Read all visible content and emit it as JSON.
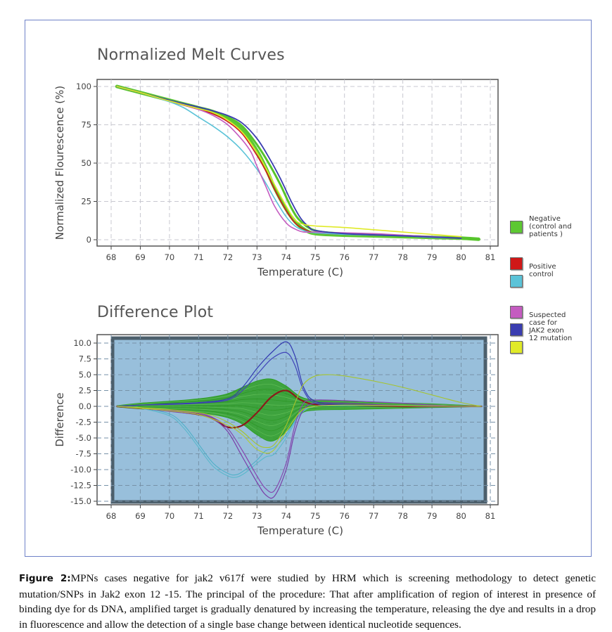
{
  "figure": {
    "caption_label": "Figure 2:",
    "caption_text": "MPNs cases negative for jak2 v617f were studied by HRM which is screening methodology to detect genetic mutation/SNPs in Jak2 exon 12 -15. The principal of the procedure: That after amplification of region of interest in presence of binding dye for ds DNA, amplified target is gradually denatured by increasing the temperature, releasing the dye and results in a drop in fluorescence and allow the detection of a single base change between identical nucleotide sequences."
  },
  "legend": [
    {
      "label_lines": [
        "Negative",
        "(control and",
        "patients )"
      ],
      "color": "#5dc832",
      "group": "negative"
    },
    {
      "label_lines": [
        "Positive",
        "control"
      ],
      "color": "#d01818",
      "group": "positive-a"
    },
    {
      "label_lines": [],
      "color": "#5bc3d8",
      "group": "positive-b"
    },
    {
      "label_lines": [
        "Suspected",
        "case for",
        "JAK2 exon",
        "12 mutation"
      ],
      "color": "#c45cc0",
      "group": "suspected-a"
    },
    {
      "label_lines": [],
      "color": "#3a3db0",
      "group": "suspected-b"
    },
    {
      "label_lines": [],
      "color": "#e0ea28",
      "group": "suspected-c"
    }
  ],
  "chart_data": [
    {
      "type": "line",
      "title": "Normalized Melt Curves",
      "xlabel": "Temperature (C)",
      "ylabel": "Normalized Flourescence (%)",
      "xlim": [
        68,
        81
      ],
      "ylim": [
        0,
        100
      ],
      "xticks": [
        "68",
        "69",
        "70",
        "71",
        "72",
        "73",
        "74",
        "75",
        "76",
        "77",
        "78",
        "79",
        "80",
        "81"
      ],
      "yticks": [
        "100",
        "75",
        "50",
        "25",
        "0"
      ],
      "ytick_values": [
        100,
        75,
        50,
        25,
        0
      ],
      "grid": true,
      "legend_position": "right",
      "series": [
        {
          "name": "Negative (control and patients)",
          "color": "#5dc832",
          "width": 5,
          "x": [
            68.2,
            69,
            70,
            71,
            71.5,
            72,
            72.5,
            73,
            73.3,
            73.6,
            74,
            74.3,
            74.6,
            75,
            76,
            77,
            78,
            79,
            80,
            80.6
          ],
          "y": [
            100,
            96,
            91,
            86,
            83,
            79,
            72,
            58,
            47,
            34,
            20,
            12,
            7,
            4,
            3,
            2.5,
            2,
            1.5,
            1,
            0.3
          ]
        },
        {
          "name": "Negative band upper",
          "color": "#56c42c",
          "width": 3,
          "x": [
            68.2,
            69,
            70,
            71,
            71.5,
            72,
            72.5,
            73,
            73.4,
            73.8,
            74.2,
            74.5,
            75,
            76,
            78,
            80,
            80.6
          ],
          "y": [
            100,
            96,
            91,
            86.5,
            84,
            80,
            74,
            62,
            50,
            36,
            20,
            12,
            6,
            4,
            2.5,
            1,
            0.3
          ]
        },
        {
          "name": "Positive control (red)",
          "color": "#d01818",
          "width": 1.6,
          "x": [
            68.2,
            69,
            70,
            71,
            71.5,
            72,
            72.5,
            73,
            73.3,
            73.6,
            74,
            74.3,
            74.6,
            75,
            76,
            77,
            78,
            79,
            80
          ],
          "y": [
            100,
            96,
            90.5,
            85,
            82,
            77,
            69,
            55,
            45,
            33,
            19,
            11,
            7,
            4.5,
            3.5,
            3,
            2.5,
            1.5,
            1
          ]
        },
        {
          "name": "Positive control (cyan)",
          "color": "#5bc3d8",
          "width": 1.6,
          "x": [
            68.2,
            69,
            70,
            70.5,
            71,
            71.5,
            72,
            72.5,
            73,
            73.3,
            73.6,
            74,
            74.3,
            74.6,
            75,
            76,
            77,
            78,
            79,
            80
          ],
          "y": [
            100,
            96,
            90,
            86,
            80,
            74,
            67,
            58,
            46,
            37,
            27,
            15,
            9,
            6,
            4.5,
            3.5,
            3,
            2.5,
            1.5,
            1
          ]
        },
        {
          "name": "Suspected (magenta)",
          "color": "#c45cc0",
          "width": 1.6,
          "x": [
            68.2,
            69,
            70,
            71,
            71.5,
            72,
            72.5,
            72.8,
            73,
            73.3,
            73.6,
            74,
            74.3,
            74.6,
            75,
            76,
            77,
            78,
            79,
            80
          ],
          "y": [
            100,
            96,
            90.5,
            85,
            81,
            75,
            65,
            57,
            48,
            35,
            22,
            11,
            7,
            5,
            5,
            4.5,
            4,
            3,
            2,
            1
          ]
        },
        {
          "name": "Suspected (blue)",
          "color": "#3a3db0",
          "width": 1.8,
          "x": [
            68.2,
            69,
            70,
            71,
            71.5,
            72,
            72.5,
            73,
            73.4,
            73.8,
            74.2,
            74.5,
            74.8,
            75,
            76,
            78,
            80
          ],
          "y": [
            100,
            96,
            91,
            86.5,
            84,
            81,
            76,
            66,
            54,
            40,
            24,
            14,
            8,
            6,
            4,
            2.5,
            1
          ]
        },
        {
          "name": "Suspected (yellow)",
          "color": "#e0ea28",
          "width": 1.6,
          "x": [
            68.2,
            69,
            70,
            71,
            71.5,
            72,
            72.5,
            73,
            73.3,
            73.6,
            74,
            74.3,
            74.6,
            75,
            76,
            77,
            78,
            79,
            80
          ],
          "y": [
            100,
            96,
            90.5,
            85.5,
            83,
            78,
            70,
            57,
            47,
            36,
            22,
            13,
            10,
            9,
            8,
            6.5,
            5,
            3.5,
            2
          ]
        }
      ]
    },
    {
      "type": "line",
      "title": "Difference Plot",
      "xlabel": "Temperature (C)",
      "ylabel": "Difference",
      "xlim": [
        68,
        81
      ],
      "ylim": [
        -15,
        10
      ],
      "xticks": [
        "68",
        "69",
        "70",
        "71",
        "72",
        "73",
        "74",
        "75",
        "76",
        "77",
        "78",
        "79",
        "80",
        "81"
      ],
      "yticks": [
        "10.0",
        "7.5",
        "5.0",
        "2.5",
        "0.0",
        "-2.5",
        "-5.0",
        "-7.5",
        "-10.0",
        "-12.5",
        "-15.0"
      ],
      "ytick_values": [
        10,
        7.5,
        5,
        2.5,
        0,
        -2.5,
        -5,
        -7.5,
        -10,
        -12.5,
        -15
      ],
      "grid": true,
      "series": [
        {
          "name": "Negative band",
          "color": "#2e9e22",
          "width": 1.2,
          "band": true,
          "x": [
            68.2,
            69,
            70,
            71,
            71.5,
            72,
            72.5,
            73,
            73.5,
            74,
            74.5,
            75,
            76,
            77,
            78,
            79,
            80,
            80.7
          ],
          "y_upper": [
            0.1,
            0.5,
            0.8,
            1.2,
            1.5,
            2.0,
            3.0,
            4.0,
            4.3,
            3.2,
            1.5,
            1.0,
            0.8,
            0.6,
            0.5,
            0.4,
            0.2,
            0
          ],
          "y_lower": [
            -0.1,
            -0.4,
            -0.7,
            -1.0,
            -1.3,
            -1.8,
            -2.8,
            -4.5,
            -5.5,
            -4.0,
            -1.2,
            -0.6,
            -0.5,
            -0.4,
            -0.3,
            -0.2,
            -0.1,
            0
          ]
        },
        {
          "name": "Positive control (dark red)",
          "color": "#8b1a1a",
          "width": 2.2,
          "x": [
            68.2,
            69,
            70,
            71,
            71.5,
            72,
            72.5,
            73,
            73.5,
            74,
            74.5,
            75,
            76,
            77,
            78,
            79,
            80,
            80.7
          ],
          "y": [
            0,
            -0.3,
            -0.7,
            -1.3,
            -2.0,
            -3.3,
            -3.0,
            -1.0,
            1.5,
            2.5,
            1.0,
            0.3,
            0.2,
            0.1,
            0,
            0,
            0,
            0
          ]
        },
        {
          "name": "Positive control (cyan) 1",
          "color": "#5ab8cc",
          "width": 1.1,
          "x": [
            68.2,
            69,
            70,
            70.5,
            71,
            71.5,
            72,
            72.3,
            72.6,
            73,
            73.3,
            73.6,
            74,
            74.5,
            75,
            76,
            78,
            80,
            80.7
          ],
          "y": [
            0,
            -0.3,
            -1.5,
            -3.5,
            -6.5,
            -9.5,
            -11.0,
            -11.2,
            -10.5,
            -9.0,
            -8.0,
            -7.5,
            -5.0,
            -1.2,
            0,
            0.2,
            0.1,
            0,
            0
          ]
        },
        {
          "name": "Positive control (cyan) 2",
          "color": "#4fb0c8",
          "width": 1.1,
          "x": [
            68.2,
            69,
            70,
            70.5,
            71,
            71.5,
            72,
            72.3,
            72.6,
            73,
            73.3,
            73.6,
            74,
            74.5,
            75,
            76,
            78,
            80,
            80.7
          ],
          "y": [
            0,
            -0.2,
            -1.2,
            -3.0,
            -6.0,
            -9.0,
            -10.6,
            -10.8,
            -10.0,
            -8.5,
            -7.0,
            -6.5,
            -4.5,
            -1.0,
            0,
            0.1,
            0.1,
            0,
            0
          ]
        },
        {
          "name": "Suspected (purple) 1",
          "color": "#7a3ea8",
          "width": 1.2,
          "x": [
            68.2,
            69,
            70,
            71,
            71.5,
            72,
            72.5,
            73,
            73.3,
            73.6,
            74,
            74.3,
            74.6,
            75,
            76,
            77,
            78,
            79,
            80,
            80.7
          ],
          "y": [
            0,
            -0.3,
            -0.8,
            -1.3,
            -2.0,
            -4.0,
            -8.0,
            -12.0,
            -14.0,
            -14.2,
            -10.0,
            -4.0,
            -0.5,
            0.5,
            0.5,
            0.3,
            0.1,
            0,
            0,
            0
          ]
        },
        {
          "name": "Suspected (purple) 2",
          "color": "#8648b0",
          "width": 1.2,
          "x": [
            68.2,
            69,
            70,
            71,
            71.5,
            72,
            72.5,
            73,
            73.3,
            73.6,
            74,
            74.3,
            74.6,
            75,
            76,
            77,
            78,
            79,
            80,
            80.7
          ],
          "y": [
            0,
            -0.2,
            -0.6,
            -1.1,
            -1.8,
            -3.5,
            -7.0,
            -11.0,
            -13.0,
            -13.3,
            -9.0,
            -3.0,
            0.5,
            1.0,
            0.9,
            0.7,
            0.5,
            0.2,
            0,
            0
          ]
        },
        {
          "name": "Suspected (blue) 1",
          "color": "#3238b0",
          "width": 1.2,
          "x": [
            68.2,
            69,
            70,
            71,
            72,
            72.5,
            73,
            73.5,
            74,
            74.3,
            74.6,
            75,
            76,
            78,
            80,
            80.7
          ],
          "y": [
            0,
            0.2,
            0.4,
            0.6,
            1.2,
            3.0,
            6.0,
            8.5,
            10.2,
            8.0,
            3.0,
            0.8,
            0.3,
            0.1,
            0,
            0
          ]
        },
        {
          "name": "Suspected (blue) 2",
          "color": "#4044b8",
          "width": 1.2,
          "x": [
            68.2,
            69,
            70,
            71,
            72,
            72.5,
            73,
            73.5,
            74,
            74.3,
            74.6,
            75,
            76,
            78,
            80,
            80.7
          ],
          "y": [
            0,
            0.2,
            0.3,
            0.5,
            1.0,
            2.5,
            5.0,
            7.5,
            8.5,
            6.5,
            2.5,
            0.5,
            0.2,
            0.1,
            0,
            0
          ]
        },
        {
          "name": "Suspected (yellow-green) 1",
          "color": "#a6c42c",
          "width": 1.1,
          "x": [
            68.2,
            69,
            70,
            71,
            71.5,
            72,
            72.5,
            73,
            73.3,
            73.6,
            74,
            74.3,
            74.6,
            75,
            75.5,
            76,
            77,
            78,
            79,
            80,
            80.7
          ],
          "y": [
            0,
            -0.2,
            -0.5,
            -1.0,
            -1.5,
            -2.5,
            -4.0,
            -6.0,
            -6.5,
            -6.0,
            -3.0,
            0.5,
            3.5,
            4.8,
            5.0,
            4.8,
            4.0,
            3.0,
            1.8,
            0.6,
            0
          ]
        },
        {
          "name": "Suspected (yellow-green) 2",
          "color": "#b4cc30",
          "width": 1.1,
          "x": [
            68.2,
            69,
            70,
            71,
            72,
            72.5,
            73,
            73.5,
            74,
            74.5,
            75,
            76,
            78,
            80,
            80.7
          ],
          "y": [
            0,
            -0.3,
            -0.7,
            -1.3,
            -3.0,
            -4.5,
            -6.8,
            -7.2,
            -4.0,
            -0.8,
            0,
            0.2,
            0.1,
            0,
            0
          ]
        }
      ]
    }
  ]
}
